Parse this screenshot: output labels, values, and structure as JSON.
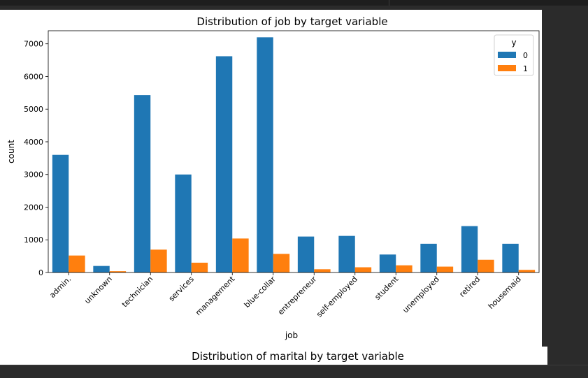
{
  "chart_data": {
    "type": "bar",
    "title": "Distribution of job by target variable",
    "xlabel": "job",
    "ylabel": "count",
    "ylim": [
      0,
      7400
    ],
    "yticks": [
      "0",
      "1000",
      "2000",
      "3000",
      "4000",
      "5000",
      "6000",
      "7000"
    ],
    "categories": [
      "admin.",
      "unknown",
      "technician",
      "services",
      "management",
      "blue-collar",
      "entrepreneur",
      "self-employed",
      "student",
      "unemployed",
      "retired",
      "housemaid"
    ],
    "legend": {
      "title": "y",
      "placement": "top-right"
    },
    "series": [
      {
        "name": "0",
        "color": "#1f77b4",
        "values": [
          3600,
          200,
          5430,
          3000,
          6620,
          7200,
          1100,
          1120,
          550,
          880,
          1420,
          880
        ]
      },
      {
        "name": "1",
        "color": "#ff7f0e",
        "values": [
          520,
          40,
          700,
          300,
          1040,
          570,
          100,
          160,
          220,
          180,
          390,
          80
        ]
      }
    ],
    "grid": false
  },
  "next_chart": {
    "title": "Distribution of marital by target variable"
  }
}
